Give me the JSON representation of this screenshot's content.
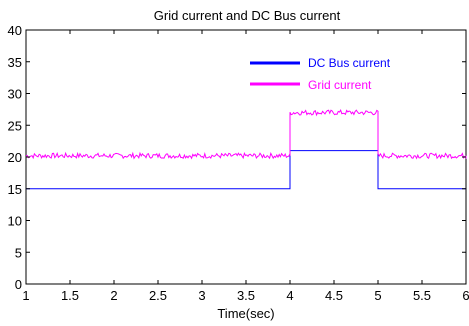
{
  "chart_data": {
    "type": "line",
    "title": "Grid current and DC Bus current",
    "xlabel": "Time(sec)",
    "ylabel": "",
    "xlim": [
      1,
      6
    ],
    "ylim": [
      0,
      40
    ],
    "xticks": [
      "1",
      "1.5",
      "2",
      "2.5",
      "3",
      "3.5",
      "4",
      "4.5",
      "5",
      "5.5",
      "6"
    ],
    "yticks": [
      "0",
      "5",
      "10",
      "15",
      "20",
      "25",
      "30",
      "35",
      "40"
    ],
    "grid": false,
    "legend_position": "top-right",
    "series": [
      {
        "name": "DC Bus current",
        "color": "#0000ff",
        "x": [
          1,
          4,
          4,
          5,
          5,
          6
        ],
        "y": [
          15,
          15,
          21,
          21,
          15,
          15
        ]
      },
      {
        "name": "Grid current",
        "color": "#ff00ff",
        "x": [
          1,
          4,
          4,
          5,
          5,
          6
        ],
        "y": [
          20.2,
          20.2,
          27,
          27,
          20.2,
          20.2
        ],
        "noise_amplitude": 0.4
      }
    ]
  }
}
